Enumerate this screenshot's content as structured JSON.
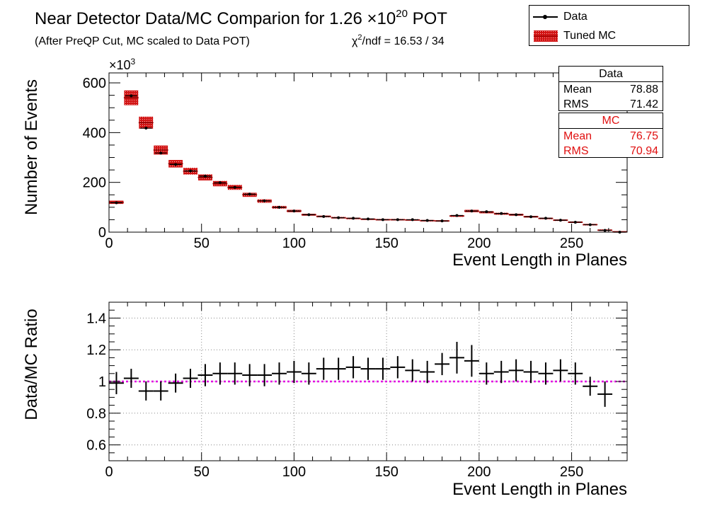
{
  "header": {
    "title_main": "Near Detector Data/MC Comparion for 1.26 ×10",
    "title_exp": "20",
    "title_end": " POT",
    "subtitle": "(After PreQP Cut, MC scaled to Data POT)",
    "chi_prefix": "χ",
    "chi_exp": "2",
    "chi_rest": "/ndf = 16.53 / 34"
  },
  "legend": {
    "data_label": "Data",
    "mc_label": "Tuned MC"
  },
  "stats": {
    "data": {
      "title": "Data",
      "mean_label": "Mean",
      "mean_value": "78.88",
      "rms_label": "RMS",
      "rms_value": "71.42"
    },
    "mc": {
      "title": "MC",
      "mean_label": "Mean",
      "mean_value": "76.75",
      "rms_label": "RMS",
      "rms_value": "70.94"
    }
  },
  "colors": {
    "mc": "#d21414",
    "ratio_line": "#e000e0",
    "data": "#000000"
  },
  "chart_data": [
    {
      "type": "bar",
      "ylabel": "Number of Events",
      "xlabel": "Event Length in Planes",
      "y_multiplier": "×10",
      "y_multiplier_exp": "3",
      "xlim": [
        0,
        280
      ],
      "ylim": [
        0,
        640
      ],
      "xticks": [
        0,
        50,
        100,
        150,
        200,
        250
      ],
      "yticks": [
        0,
        200,
        400,
        600
      ],
      "bin_width": 8,
      "x": [
        4,
        12,
        20,
        28,
        36,
        44,
        52,
        60,
        68,
        76,
        84,
        92,
        100,
        108,
        116,
        124,
        132,
        140,
        148,
        156,
        164,
        172,
        180,
        188,
        196,
        204,
        212,
        220,
        228,
        236,
        244,
        252,
        260,
        268,
        276
      ],
      "series": [
        {
          "name": "Tuned MC",
          "values": [
            120,
            540,
            440,
            330,
            275,
            245,
            220,
            195,
            180,
            150,
            125,
            100,
            85,
            70,
            63,
            58,
            55,
            52,
            50,
            50,
            49,
            46,
            45,
            65,
            85,
            80,
            74,
            70,
            62,
            55,
            48,
            40,
            30,
            8,
            1
          ]
        },
        {
          "name": "Data",
          "values": [
            118,
            548,
            418,
            318,
            272,
            246,
            225,
            199,
            180,
            153,
            126,
            100,
            85,
            70,
            63,
            58,
            56,
            53,
            50,
            50,
            50,
            47,
            45,
            67,
            85,
            82,
            75,
            70,
            62,
            56,
            48,
            40,
            30,
            7,
            0
          ]
        }
      ]
    },
    {
      "type": "scatter",
      "ylabel": "Data/MC Ratio",
      "xlabel": "Event Length in Planes",
      "xlim": [
        0,
        280
      ],
      "ylim": [
        0.5,
        1.5
      ],
      "xticks": [
        0,
        50,
        100,
        150,
        200,
        250
      ],
      "yticks": [
        0.6,
        0.8,
        1,
        1.2,
        1.4
      ],
      "reference_line": 1.0,
      "x": [
        4,
        12,
        20,
        28,
        36,
        44,
        52,
        60,
        68,
        76,
        84,
        92,
        100,
        108,
        116,
        124,
        132,
        140,
        148,
        156,
        164,
        172,
        180,
        188,
        196,
        204,
        212,
        220,
        228,
        236,
        244,
        252,
        260,
        268
      ],
      "x_err": 4,
      "values": [
        0.99,
        1.02,
        0.94,
        0.94,
        0.99,
        1.02,
        1.04,
        1.05,
        1.05,
        1.04,
        1.04,
        1.05,
        1.06,
        1.05,
        1.08,
        1.08,
        1.09,
        1.08,
        1.08,
        1.09,
        1.07,
        1.06,
        1.11,
        1.15,
        1.13,
        1.05,
        1.06,
        1.07,
        1.06,
        1.05,
        1.07,
        1.05,
        0.97,
        0.92
      ],
      "y_err": [
        0.07,
        0.06,
        0.06,
        0.06,
        0.06,
        0.06,
        0.07,
        0.07,
        0.07,
        0.07,
        0.07,
        0.07,
        0.07,
        0.07,
        0.07,
        0.07,
        0.07,
        0.07,
        0.07,
        0.07,
        0.07,
        0.07,
        0.07,
        0.1,
        0.1,
        0.07,
        0.07,
        0.07,
        0.07,
        0.07,
        0.07,
        0.07,
        0.06,
        0.08
      ]
    }
  ]
}
